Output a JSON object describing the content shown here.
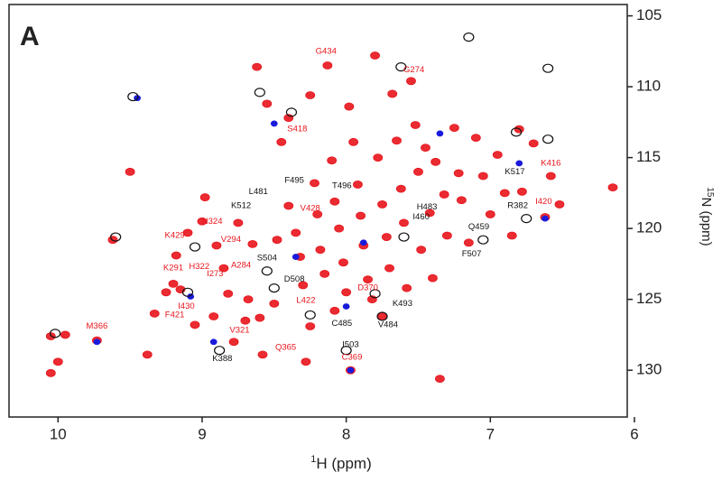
{
  "chart_data": {
    "type": "scatter",
    "panel_label": "A",
    "x_label": {
      "sup": "1",
      "text": "H  (ppm)"
    },
    "y_label": {
      "sup": "15",
      "text": "N  (ppm)"
    },
    "xlim": [
      10.34,
      6.05
    ],
    "ylim": [
      104.2,
      133.3
    ],
    "xticks": [
      10,
      9,
      8,
      7,
      6
    ],
    "yticks": [
      105,
      110,
      115,
      120,
      125,
      130
    ],
    "series": [
      {
        "color": "#e8141c",
        "style": "filled",
        "x": [
          10.05,
          10.0,
          10.05,
          9.95,
          9.73,
          9.62,
          9.5,
          9.38,
          9.33,
          9.25,
          9.2,
          9.15,
          9.18,
          9.1,
          9.05,
          9.0,
          8.98,
          8.92,
          8.85,
          8.82,
          8.78,
          8.7,
          8.68,
          8.65,
          8.62,
          8.55,
          8.58,
          8.5,
          8.45,
          8.4,
          8.4,
          8.35,
          8.32,
          8.3,
          8.28,
          8.25,
          8.22,
          8.2,
          8.18,
          8.15,
          8.13,
          8.1,
          8.08,
          8.05,
          8.02,
          8.0,
          7.98,
          7.95,
          7.92,
          7.9,
          7.88,
          7.85,
          7.82,
          7.8,
          7.78,
          7.75,
          7.72,
          7.7,
          7.68,
          7.65,
          7.62,
          7.6,
          7.58,
          7.55,
          7.52,
          7.5,
          7.48,
          7.45,
          7.42,
          7.4,
          7.38,
          7.35,
          7.32,
          7.3,
          7.25,
          7.22,
          7.2,
          7.15,
          7.1,
          7.05,
          7.0,
          6.95,
          6.9,
          6.85,
          6.8,
          6.78,
          6.7,
          6.62,
          6.58,
          6.52,
          6.15,
          8.48,
          8.6,
          8.08,
          7.97,
          7.75,
          8.25,
          8.9,
          8.75
        ],
        "y": [
          130.2,
          129.4,
          127.6,
          127.5,
          127.9,
          120.8,
          116.0,
          128.9,
          126.0,
          124.5,
          123.9,
          124.3,
          121.9,
          120.3,
          126.8,
          119.5,
          117.8,
          126.2,
          122.8,
          124.6,
          128.0,
          126.5,
          125.0,
          121.1,
          108.6,
          111.2,
          128.9,
          125.3,
          113.9,
          112.2,
          118.4,
          120.3,
          122.0,
          124.0,
          129.4,
          110.6,
          116.8,
          119.0,
          121.5,
          123.2,
          108.5,
          115.2,
          118.1,
          120.0,
          122.4,
          124.5,
          111.4,
          113.9,
          116.9,
          119.1,
          121.2,
          123.6,
          125.0,
          107.8,
          115.0,
          118.3,
          120.6,
          122.8,
          110.5,
          113.8,
          117.2,
          119.6,
          124.2,
          109.6,
          112.7,
          116.0,
          121.5,
          114.3,
          118.9,
          123.5,
          115.3,
          130.6,
          117.6,
          120.5,
          112.9,
          116.1,
          118.0,
          121.0,
          113.6,
          116.3,
          119.0,
          114.8,
          117.5,
          120.5,
          113.0,
          117.4,
          114.0,
          119.2,
          116.3,
          118.3,
          117.1,
          120.8,
          126.3,
          125.8,
          130.0,
          126.2,
          126.9,
          121.2,
          119.6
        ]
      },
      {
        "color": "#1a1adc",
        "style": "filled",
        "x": [
          9.73,
          8.92,
          7.97,
          8.35,
          7.88,
          6.62,
          9.45,
          8.5,
          7.35,
          6.8,
          9.08,
          8.0
        ],
        "y": [
          128.0,
          128.0,
          130.0,
          122.0,
          121.0,
          119.3,
          110.8,
          112.6,
          113.3,
          115.4,
          124.8,
          125.5
        ]
      },
      {
        "color": "#111111",
        "style": "open",
        "x": [
          10.02,
          9.6,
          9.48,
          8.6,
          8.38,
          7.15,
          6.6,
          7.62,
          6.82,
          6.6,
          6.75,
          7.05,
          8.88,
          8.0,
          7.75,
          8.5,
          9.1,
          8.25,
          7.8,
          8.55,
          9.05,
          7.6
        ],
        "y": [
          127.4,
          120.6,
          110.7,
          110.4,
          111.8,
          106.5,
          108.7,
          108.6,
          113.2,
          113.7,
          119.3,
          120.8,
          128.6,
          128.6,
          126.2,
          124.2,
          124.5,
          126.1,
          124.6,
          123.0,
          121.3,
          120.6
        ]
      }
    ],
    "annotations": [
      {
        "text": "G434",
        "x": 8.14,
        "y": 107.5,
        "color": "#e8141c"
      },
      {
        "text": "G274",
        "x": 7.53,
        "y": 108.8,
        "color": "#e8141c"
      },
      {
        "text": "S418",
        "x": 8.34,
        "y": 113.0,
        "color": "#e8141c"
      },
      {
        "text": "K416",
        "x": 6.58,
        "y": 115.4,
        "color": "#e8141c"
      },
      {
        "text": "K517",
        "x": 6.83,
        "y": 116.0,
        "color": "#111111"
      },
      {
        "text": "F495",
        "x": 8.36,
        "y": 116.6,
        "color": "#111111"
      },
      {
        "text": "T496",
        "x": 8.03,
        "y": 117.0,
        "color": "#111111"
      },
      {
        "text": "L481",
        "x": 8.61,
        "y": 117.4,
        "color": "#111111"
      },
      {
        "text": "I420",
        "x": 6.63,
        "y": 118.1,
        "color": "#e8141c"
      },
      {
        "text": "K512",
        "x": 8.73,
        "y": 118.4,
        "color": "#111111"
      },
      {
        "text": "V428",
        "x": 8.25,
        "y": 118.6,
        "color": "#e8141c"
      },
      {
        "text": "H483",
        "x": 7.44,
        "y": 118.5,
        "color": "#111111"
      },
      {
        "text": "R382",
        "x": 6.81,
        "y": 118.4,
        "color": "#111111"
      },
      {
        "text": "N324",
        "x": 8.93,
        "y": 119.5,
        "color": "#e8141c"
      },
      {
        "text": "I460",
        "x": 7.48,
        "y": 119.2,
        "color": "#111111"
      },
      {
        "text": "Q459",
        "x": 7.08,
        "y": 119.9,
        "color": "#111111"
      },
      {
        "text": "K429",
        "x": 9.19,
        "y": 120.5,
        "color": "#e8141c"
      },
      {
        "text": "V294",
        "x": 8.8,
        "y": 120.8,
        "color": "#e8141c"
      },
      {
        "text": "F507",
        "x": 7.13,
        "y": 121.8,
        "color": "#111111"
      },
      {
        "text": "S504",
        "x": 8.55,
        "y": 122.1,
        "color": "#111111"
      },
      {
        "text": "A284",
        "x": 8.73,
        "y": 122.6,
        "color": "#e8141c"
      },
      {
        "text": "K291",
        "x": 9.2,
        "y": 122.8,
        "color": "#e8141c"
      },
      {
        "text": "H322",
        "x": 9.02,
        "y": 122.7,
        "color": "#e8141c"
      },
      {
        "text": "I273",
        "x": 8.91,
        "y": 123.2,
        "color": "#e8141c"
      },
      {
        "text": "D508",
        "x": 8.36,
        "y": 123.6,
        "color": "#111111"
      },
      {
        "text": "D370",
        "x": 7.85,
        "y": 124.2,
        "color": "#e8141c"
      },
      {
        "text": "L422",
        "x": 8.28,
        "y": 125.1,
        "color": "#e8141c"
      },
      {
        "text": "K493",
        "x": 7.61,
        "y": 125.3,
        "color": "#111111"
      },
      {
        "text": "I430",
        "x": 9.11,
        "y": 125.5,
        "color": "#e8141c"
      },
      {
        "text": "F421",
        "x": 9.19,
        "y": 126.1,
        "color": "#e8141c"
      },
      {
        "text": "C485",
        "x": 8.03,
        "y": 126.7,
        "color": "#111111"
      },
      {
        "text": "V484",
        "x": 7.71,
        "y": 126.8,
        "color": "#111111"
      },
      {
        "text": "M366",
        "x": 9.73,
        "y": 126.9,
        "color": "#e8141c"
      },
      {
        "text": "V321",
        "x": 8.74,
        "y": 127.2,
        "color": "#e8141c"
      },
      {
        "text": "Q365",
        "x": 8.42,
        "y": 128.4,
        "color": "#e8141c"
      },
      {
        "text": "I503",
        "x": 7.97,
        "y": 128.2,
        "color": "#111111"
      },
      {
        "text": "K388",
        "x": 8.86,
        "y": 129.2,
        "color": "#111111"
      },
      {
        "text": "C369",
        "x": 7.96,
        "y": 129.1,
        "color": "#e8141c"
      }
    ]
  }
}
